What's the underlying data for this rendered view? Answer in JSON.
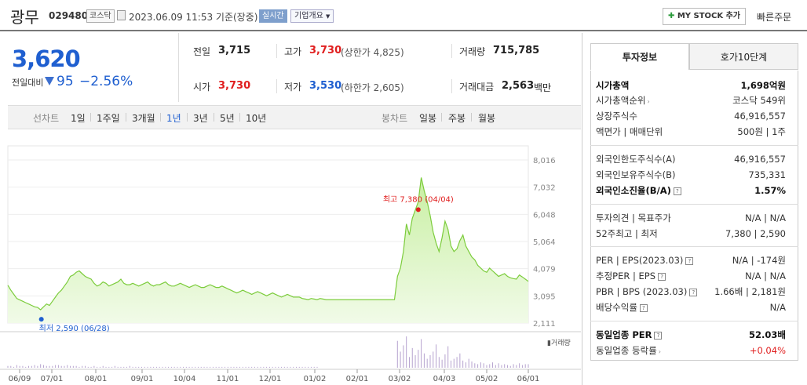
{
  "header": {
    "name": "광무",
    "code": "029480",
    "market_badge": "코스닥",
    "datetime": "2023.06.09 11:53 기준(장중)",
    "live_badge": "실시간",
    "info_button": "기업개요",
    "mystock_button": "MY STOCK 추가",
    "quick_order": "빠른주문"
  },
  "price": {
    "current": "3,620",
    "prev_label": "전일대비",
    "diff": "95",
    "diff_pct": "−2.56%"
  },
  "summary": {
    "prev_close": {
      "label": "전일",
      "value": "3,715"
    },
    "high": {
      "label": "고가",
      "value": "3,730",
      "note": "(상한가 4,825)"
    },
    "volume": {
      "label": "거래량",
      "value": "715,785"
    },
    "open": {
      "label": "시가",
      "value": "3,730"
    },
    "low": {
      "label": "저가",
      "value": "3,530",
      "note": "(하한가 2,605)"
    },
    "amount": {
      "label": "거래대금",
      "value": "2,563",
      "unit": "백만"
    }
  },
  "periods": {
    "line_label": "선차트",
    "line_items": [
      "1일",
      "1주일",
      "3개월",
      "1년",
      "3년",
      "5년",
      "10년"
    ],
    "selected": "1년",
    "candle_label": "봉차트",
    "candle_items": [
      "일봉",
      "주봉",
      "월봉"
    ]
  },
  "tabs": [
    "투자정보",
    "호가10단계"
  ],
  "info": {
    "market_cap": {
      "label": "시가총액",
      "value": "1,698억원"
    },
    "cap_rank": {
      "label": "시가총액순위",
      "value": "코스닥 549위"
    },
    "shares": {
      "label": "상장주식수",
      "value": "46,916,557"
    },
    "par": {
      "label": "액면가 | 매매단위",
      "value": "500원 | 1주"
    },
    "foreign_limit": {
      "label": "외국인한도주식수(A)",
      "value": "46,916,557"
    },
    "foreign_hold": {
      "label": "외국인보유주식수(B)",
      "value": "735,331"
    },
    "foreign_ratio": {
      "label": "외국인소진율(B/A)",
      "value": "1.57%"
    },
    "opinion": {
      "label": "투자의견 | 목표주가",
      "value": "N/A | N/A"
    },
    "week52": {
      "label": "52주최고 | 최저",
      "value": "7,380 | 2,590"
    },
    "per": {
      "label": "PER | EPS(2023.03)",
      "value": "N/A | -174원"
    },
    "est_per": {
      "label": "추정PER | EPS",
      "value": "N/A | N/A"
    },
    "pbr": {
      "label": "PBR | BPS (2023.03)",
      "value": "1.66배 | 2,181원"
    },
    "dividend": {
      "label": "배당수익률",
      "value": "N/A"
    },
    "sector_per": {
      "label": "동일업종 PER",
      "value": "52.03배"
    },
    "sector_change": {
      "label": "동일업종 등락률",
      "value": "+0.04%"
    }
  },
  "chart_data": {
    "type": "area",
    "x_ticks": [
      "06/09",
      "07/01",
      "08/01",
      "09/01",
      "10/04",
      "11/01",
      "12/01",
      "01/02",
      "02/01",
      "03/02",
      "04/03",
      "05/02",
      "06/01"
    ],
    "y_ticks": [
      "8,016",
      "7,032",
      "6,048",
      "5,064",
      "4,079",
      "3,095",
      "2,111"
    ],
    "ylim": [
      2111,
      8016
    ],
    "volume_label": "거래량",
    "max_label": "최고 7,380 (04/04)",
    "min_label": "최저 2,590 (06/28)",
    "max_index": 138,
    "min_index": 11,
    "values": [
      3480,
      3300,
      3150,
      3000,
      2950,
      2900,
      2850,
      2800,
      2750,
      2700,
      2680,
      2590,
      2700,
      2800,
      2750,
      2900,
      3050,
      3200,
      3300,
      3450,
      3600,
      3800,
      3850,
      3950,
      4000,
      3900,
      3800,
      3750,
      3700,
      3550,
      3450,
      3500,
      3600,
      3550,
      3450,
      3500,
      3550,
      3600,
      3700,
      3550,
      3500,
      3500,
      3550,
      3500,
      3450,
      3500,
      3550,
      3600,
      3500,
      3450,
      3500,
      3500,
      3550,
      3600,
      3500,
      3450,
      3450,
      3500,
      3550,
      3500,
      3450,
      3400,
      3450,
      3500,
      3450,
      3400,
      3400,
      3450,
      3500,
      3450,
      3400,
      3400,
      3450,
      3400,
      3350,
      3300,
      3250,
      3200,
      3250,
      3300,
      3250,
      3200,
      3150,
      3200,
      3250,
      3200,
      3150,
      3100,
      3150,
      3200,
      3150,
      3100,
      3050,
      3100,
      3150,
      3100,
      3050,
      3050,
      3050,
      3000,
      2980,
      2960,
      3000,
      2980,
      2960,
      3000,
      2980,
      2960,
      2960,
      2960,
      2960,
      2960,
      2960,
      2960,
      2960,
      2960,
      2960,
      2960,
      2960,
      2960,
      2960,
      2960,
      2960,
      2960,
      2960,
      2960,
      2960,
      2960,
      2960,
      2960,
      2960,
      3800,
      4100,
      4700,
      5700,
      5300,
      5900,
      6200,
      6500,
      7380,
      6900,
      6500,
      6000,
      5400,
      5000,
      4700,
      5200,
      5800,
      5500,
      4900,
      4700,
      4800,
      5100,
      5300,
      4900,
      4700,
      4500,
      4400,
      4200,
      4100,
      4000,
      3950,
      4100,
      4000,
      3900,
      3800,
      3850,
      3900,
      3800,
      3750,
      3720,
      3700,
      3850,
      3780,
      3700,
      3620
    ],
    "volume": [
      2,
      2,
      1,
      3,
      2,
      2,
      1,
      2,
      2,
      3,
      2,
      4,
      3,
      2,
      2,
      2,
      3,
      3,
      2,
      2,
      3,
      2,
      2,
      2,
      1,
      2,
      2,
      1,
      1,
      2,
      1,
      1,
      2,
      1,
      1,
      1,
      2,
      1,
      1,
      1,
      1,
      2,
      1,
      1,
      1,
      1,
      1,
      1,
      1,
      1,
      1,
      1,
      1,
      1,
      1,
      1,
      1,
      1,
      1,
      1,
      1,
      1,
      1,
      1,
      1,
      1,
      1,
      1,
      1,
      1,
      1,
      1,
      1,
      1,
      1,
      1,
      1,
      1,
      1,
      1,
      1,
      1,
      1,
      1,
      1,
      1,
      1,
      1,
      1,
      1,
      1,
      1,
      1,
      1,
      1,
      1,
      1,
      1,
      1,
      1,
      1,
      1,
      1,
      1,
      1,
      0,
      0,
      0,
      0,
      0,
      0,
      0,
      0,
      0,
      0,
      0,
      0,
      0,
      0,
      0,
      0,
      0,
      0,
      0,
      0,
      0,
      0,
      0,
      0,
      0,
      0,
      30,
      18,
      25,
      35,
      12,
      22,
      14,
      20,
      32,
      16,
      10,
      14,
      18,
      26,
      12,
      9,
      15,
      24,
      8,
      10,
      12,
      16,
      8,
      6,
      10,
      7,
      5,
      4,
      6,
      5,
      3,
      4,
      6,
      3,
      5,
      3,
      4,
      3,
      2,
      4,
      3,
      5,
      3,
      4,
      4
    ]
  }
}
